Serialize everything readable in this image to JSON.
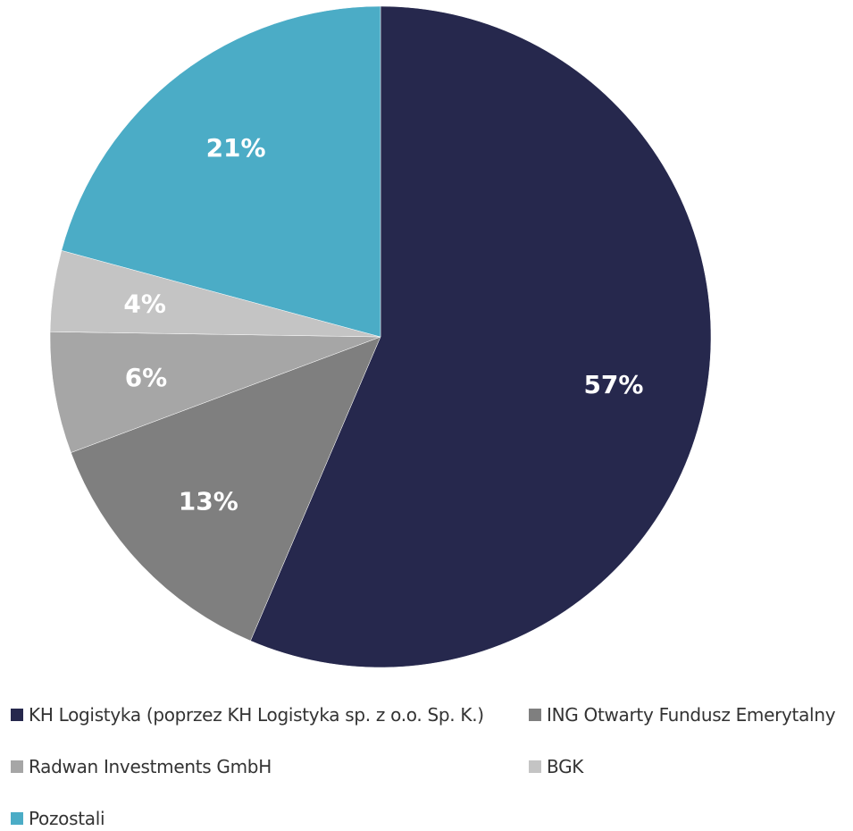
{
  "chart_data": {
    "type": "pie",
    "title": "",
    "legend_position": "bottom",
    "series": [
      {
        "name": "KH Logistyka (poprzez KH Logistyka sp. z o.o. Sp. K.)",
        "value": 57,
        "label": "57%",
        "color": "#26284D"
      },
      {
        "name": "ING Otwarty Fundusz Emerytalny",
        "value": 13,
        "label": "13%",
        "color": "#7F7F7F"
      },
      {
        "name": "Radwan Investments GmbH",
        "value": 6,
        "label": "6%",
        "color": "#A6A6A6"
      },
      {
        "name": "BGK",
        "value": 4,
        "label": "4%",
        "color": "#C4C4C4"
      },
      {
        "name": "Pozostali",
        "value": 21,
        "label": "21%",
        "color": "#4BACC6"
      }
    ]
  }
}
